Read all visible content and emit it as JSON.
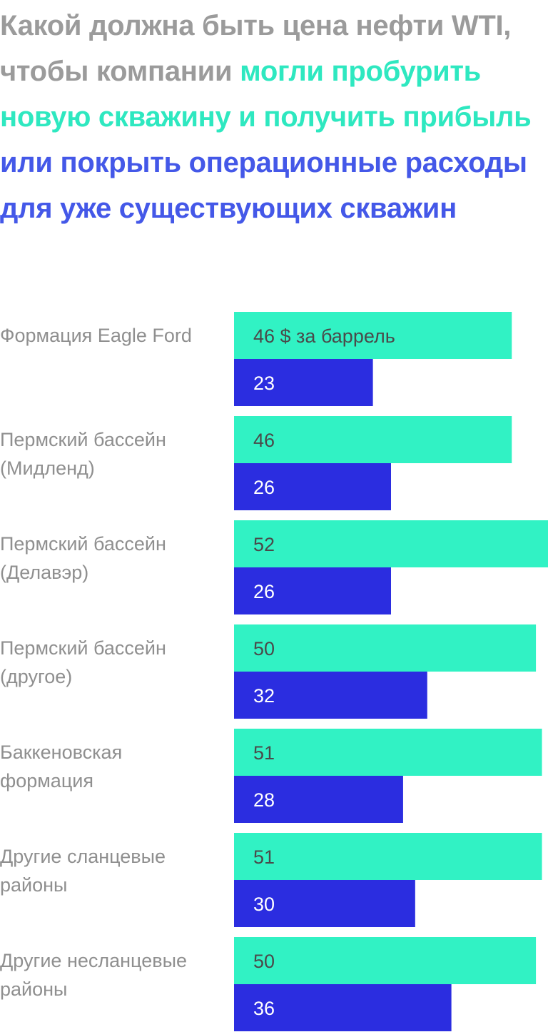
{
  "title": {
    "part1": "Какой должна быть цена нефти WTI, чтобы компании ",
    "part2": "могли пробурить новую скважину и получить прибыль",
    "part3": " или покрыть операционные расходы для уже существующих скважин"
  },
  "colors": {
    "new_well": "#31f2c4",
    "existing_well": "#2b2de0",
    "title_gray": "#9b9b9b",
    "title_green": "#2ee8c0",
    "title_blue": "#4458e8"
  },
  "chart_data": {
    "type": "bar",
    "orientation": "horizontal",
    "unit_label": "$ за баррель",
    "categories": [
      [
        "Формация Eagle Ford"
      ],
      [
        "Пермский бассейн",
        "(Мидленд)"
      ],
      [
        "Пермский бассейн",
        "(Делавэр)"
      ],
      [
        "Пермский бассейн",
        "(другое)"
      ],
      [
        "Баккеновская",
        "формация"
      ],
      [
        "Другие сланцевые",
        "районы"
      ],
      [
        "Другие несланцевые",
        "районы"
      ]
    ],
    "series": [
      {
        "values": [
          46,
          46,
          52,
          50,
          51,
          51,
          50
        ]
      },
      {
        "values": [
          23,
          26,
          26,
          32,
          28,
          30,
          36
        ]
      }
    ],
    "first_value_suffix": " $ за баррель",
    "xlim": [
      0,
      52
    ],
    "grid": false,
    "legend": "none"
  }
}
